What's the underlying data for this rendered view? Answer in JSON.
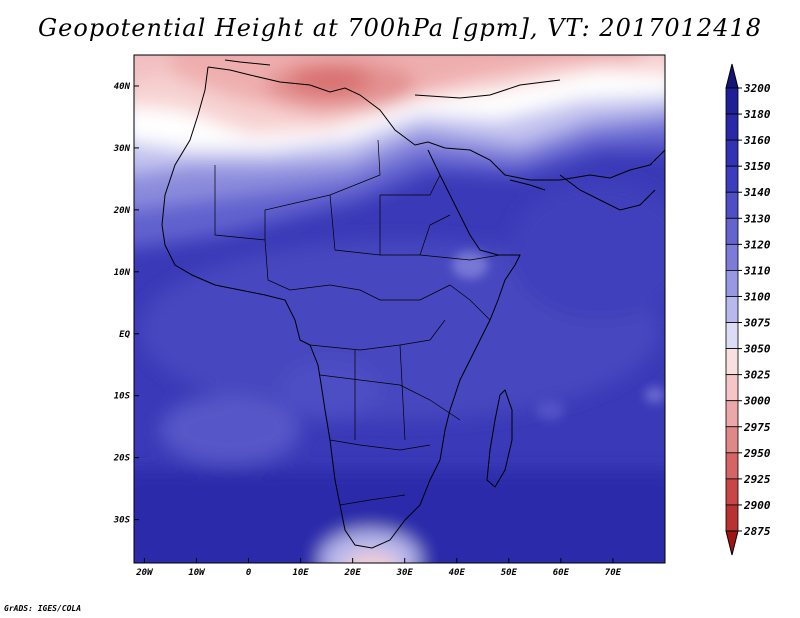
{
  "map": {
    "title": "Geopotential Height at 700hPa [gpm], VT: 2017012418",
    "credit": "GrADS: IGES/COLA",
    "lon_ticks": [
      "20W",
      "10W",
      "0",
      "10E",
      "20E",
      "30E",
      "40E",
      "50E",
      "60E",
      "70E"
    ],
    "lat_ticks": [
      "40N",
      "30N",
      "20N",
      "10N",
      "EQ",
      "10S",
      "20S",
      "30S"
    ],
    "extent": {
      "lon": [
        -22,
        80
      ],
      "lat": [
        -37,
        45
      ]
    },
    "colorbar": {
      "levels": [
        "3200",
        "3180",
        "3160",
        "3150",
        "3140",
        "3130",
        "3120",
        "3110",
        "3100",
        "3075",
        "3050",
        "3025",
        "3000",
        "2975",
        "2950",
        "2925",
        "2900",
        "2875"
      ],
      "colors": [
        "#1f1f96",
        "#2828a8",
        "#3232b4",
        "#3c3cbe",
        "#4e4ec6",
        "#6464cf",
        "#7c7cd8",
        "#9898e2",
        "#b8b8ec",
        "#dcdcf6",
        "#f8e0e0",
        "#f6c6c6",
        "#eca8a8",
        "#e08888",
        "#d66464",
        "#c84646",
        "#b83232",
        "#a82020"
      ],
      "top_color": "#141478",
      "bottom_color": "#a01414"
    }
  }
}
